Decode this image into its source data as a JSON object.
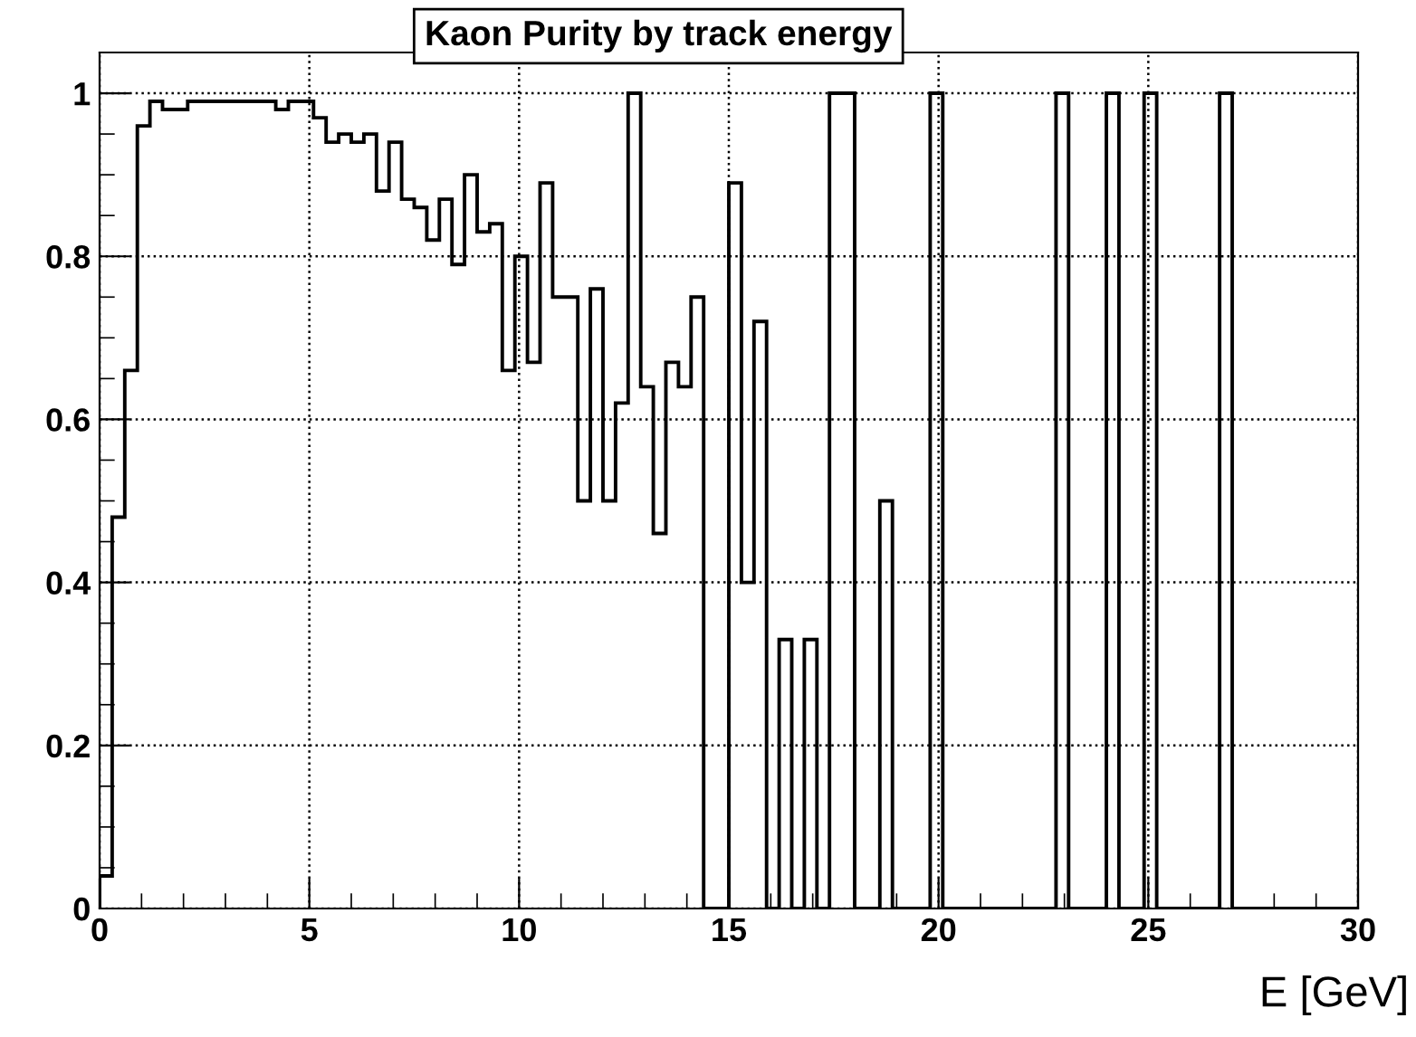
{
  "chart_data": {
    "type": "histogram",
    "title": "Kaon Purity by track energy",
    "xlabel": "E [GeV]",
    "bins": [
      0,
      0.3,
      0.6,
      0.9,
      1.2,
      1.5,
      1.8,
      2.1,
      2.4,
      2.7,
      3,
      3.3,
      3.6,
      3.9,
      4.2,
      4.5,
      4.8,
      5.1,
      5.4,
      5.7,
      6,
      6.3,
      6.6,
      6.9,
      7.2,
      7.5,
      7.8,
      8.1,
      8.4,
      8.7,
      9,
      9.3,
      9.6,
      9.9,
      10.2,
      10.5,
      10.8,
      11.1,
      11.4,
      11.7,
      12,
      12.3,
      12.6,
      12.9,
      13.2,
      13.5,
      13.8,
      14.1,
      14.4,
      14.7,
      15,
      15.3,
      15.6,
      15.9,
      16.2,
      16.5,
      16.8,
      17.1,
      17.4,
      17.7,
      18,
      18.3,
      18.6,
      18.9,
      19.2,
      19.5,
      19.8,
      20.1,
      20.4,
      20.7,
      21,
      21.3,
      21.6,
      21.9,
      22.2,
      22.5,
      22.8,
      23.1,
      23.4,
      23.7,
      24,
      24.3,
      24.6,
      24.9,
      25.2,
      25.5,
      25.8,
      26.1,
      26.4,
      26.7,
      27,
      27.3,
      27.6,
      27.9,
      28.2,
      28.5,
      28.8,
      29.1,
      29.4,
      29.7,
      30
    ],
    "values": [
      0.04,
      0.48,
      0.66,
      0.96,
      0.99,
      0.98,
      0.98,
      0.99,
      0.99,
      0.99,
      0.99,
      0.99,
      0.99,
      0.99,
      0.98,
      0.99,
      0.99,
      0.97,
      0.94,
      0.95,
      0.94,
      0.95,
      0.88,
      0.94,
      0.87,
      0.86,
      0.82,
      0.87,
      0.79,
      0.9,
      0.83,
      0.84,
      0.66,
      0.8,
      0.67,
      0.89,
      0.75,
      0.75,
      0.5,
      0.76,
      0.5,
      0.62,
      1,
      0.64,
      0.46,
      0.67,
      0.64,
      0.75,
      0,
      0,
      0.89,
      0.4,
      0.72,
      0,
      0.33,
      0,
      0.33,
      0,
      1,
      1,
      0,
      0,
      0.5,
      0,
      0,
      0,
      1,
      0,
      0,
      0,
      0,
      0,
      0,
      0,
      0,
      0,
      1,
      0,
      0,
      0,
      1,
      0,
      0,
      1,
      0,
      0,
      0,
      0,
      0,
      1,
      0,
      0,
      0,
      0,
      0,
      0,
      0,
      0,
      0,
      0
    ],
    "color": "#000000",
    "xlim": [
      0,
      30
    ],
    "xticks": [
      0,
      5,
      10,
      15,
      20,
      25,
      30
    ],
    "ylim": [
      0,
      1.05
    ],
    "yticks": [
      0,
      0.2,
      0.4,
      0.6,
      0.8,
      1
    ],
    "grid": true,
    "line_style": "solid"
  }
}
